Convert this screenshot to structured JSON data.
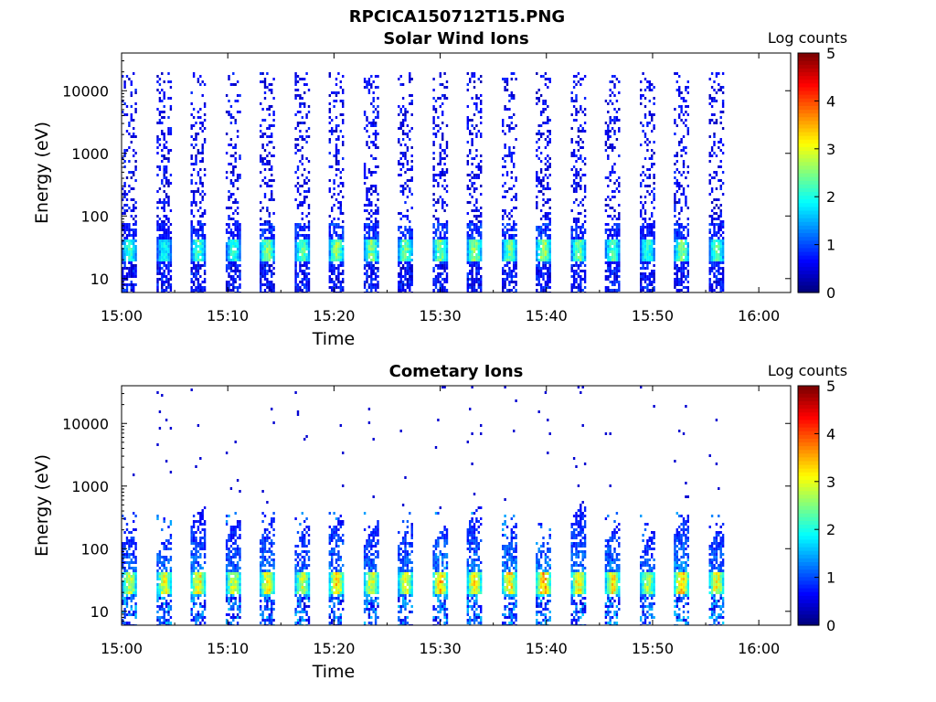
{
  "figure": {
    "title": "RPCICA150712T15.PNG"
  },
  "colors": {
    "colormap": "jet",
    "background": "#ffffff",
    "axes": "#000000"
  },
  "chart_data": [
    {
      "type": "heatmap",
      "title": "Solar Wind Ions",
      "xlabel": "Time",
      "ylabel": "Energy (eV)",
      "x_ticks": [
        "15:00",
        "15:10",
        "15:20",
        "15:30",
        "15:40",
        "15:50",
        "16:00"
      ],
      "x_tick_minutes": [
        0,
        10,
        20,
        30,
        40,
        50,
        60
      ],
      "xlim_minutes": [
        0,
        63
      ],
      "y_scale": "log",
      "y_ticks": [
        "10",
        "100",
        "1000",
        "10000"
      ],
      "y_tick_values": [
        10,
        100,
        1000,
        10000
      ],
      "ylim": [
        6,
        40000
      ],
      "colorbar": {
        "label": "Log counts",
        "ticks": [
          "0",
          "1",
          "2",
          "3",
          "4",
          "5"
        ],
        "range": [
          0,
          5
        ]
      },
      "sweep_start_minutes": [
        0,
        3.3,
        6.5,
        9.8,
        13.0,
        16.3,
        19.5,
        22.8,
        26.0,
        29.3,
        32.5,
        35.8,
        39.0,
        42.3,
        45.5,
        48.8,
        52.0,
        55.3
      ],
      "sweep_duration_minutes": 1.3,
      "data_end_minutes": 56.6,
      "peak_energy_eV": 30,
      "peak_log_counts": [
        2.2,
        2.0,
        2.3,
        2.2,
        2.6,
        2.4,
        2.7,
        2.6,
        2.5,
        2.6,
        2.7,
        2.5,
        2.8,
        2.5,
        2.3,
        2.2,
        2.6,
        2.4
      ],
      "high_energy_extent_eV": 20000
    },
    {
      "type": "heatmap",
      "title": "Cometary Ions",
      "xlabel": "Time",
      "ylabel": "Energy (eV)",
      "x_ticks": [
        "15:00",
        "15:10",
        "15:20",
        "15:30",
        "15:40",
        "15:50",
        "16:00"
      ],
      "x_tick_minutes": [
        0,
        10,
        20,
        30,
        40,
        50,
        60
      ],
      "xlim_minutes": [
        0,
        63
      ],
      "y_scale": "log",
      "y_ticks": [
        "10",
        "100",
        "1000",
        "10000"
      ],
      "y_tick_values": [
        10,
        100,
        1000,
        10000
      ],
      "ylim": [
        6,
        40000
      ],
      "colorbar": {
        "label": "Log counts",
        "ticks": [
          "0",
          "1",
          "2",
          "3",
          "4",
          "5"
        ],
        "range": [
          0,
          5
        ]
      },
      "sweep_start_minutes": [
        0,
        3.3,
        6.5,
        9.8,
        13.0,
        16.3,
        19.5,
        22.8,
        26.0,
        29.3,
        32.5,
        35.8,
        39.0,
        42.3,
        45.5,
        48.8,
        52.0,
        55.3
      ],
      "sweep_duration_minutes": 1.3,
      "data_end_minutes": 56.6,
      "peak_energy_eV": 30,
      "peak_log_counts": [
        3.0,
        3.1,
        3.3,
        3.0,
        3.3,
        3.0,
        3.4,
        3.1,
        3.1,
        3.5,
        3.3,
        3.4,
        3.6,
        3.4,
        3.3,
        2.9,
        3.6,
        3.2
      ],
      "spike_energy_eV": [
        200,
        150,
        400,
        250,
        250,
        200,
        300,
        200,
        200,
        200,
        400,
        200,
        150,
        500,
        200,
        150,
        300,
        200
      ]
    }
  ]
}
